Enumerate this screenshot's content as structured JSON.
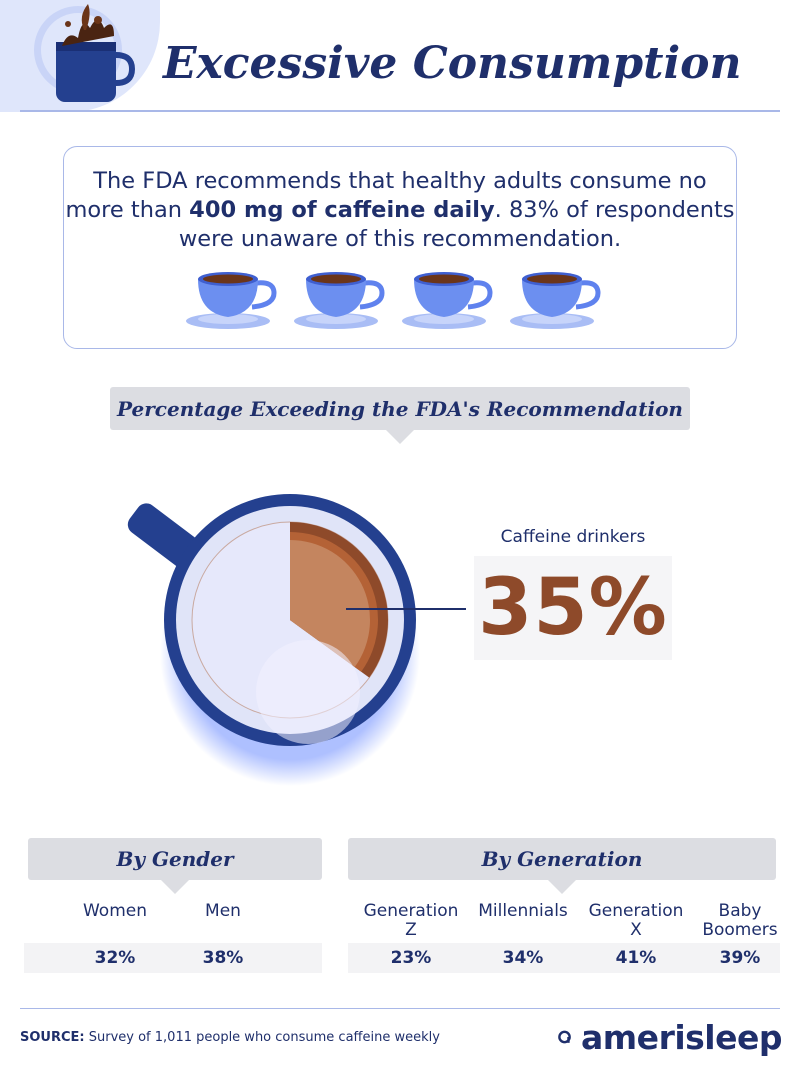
{
  "header": {
    "title": "Excessive Consumption",
    "logo_icon": "coffee-mug-splash-icon"
  },
  "info": {
    "text_before": "The FDA recommends that healthy adults consume no more than ",
    "text_bold": "400 mg of caffeine daily",
    "text_after": ". 83% of respondents were unaware of this recommendation.",
    "cups_count": 4,
    "cup_icon": "coffee-cup-icon"
  },
  "main_chart": {
    "banner": "Percentage Exceeding the FDA's Recommendation",
    "callout_label": "Caffeine drinkers",
    "callout_value": "35%"
  },
  "gender": {
    "banner": "By Gender",
    "categories": [
      "Women",
      "Men"
    ],
    "values": [
      "32%",
      "38%"
    ]
  },
  "generation": {
    "banner": "By Generation",
    "categories": [
      "Generation Z",
      "Millennials",
      "Generation X",
      "Baby Boomers"
    ],
    "values": [
      "23%",
      "34%",
      "41%",
      "39%"
    ]
  },
  "footer": {
    "source_label": "SOURCE:",
    "source_text": "Survey of 1,011 people who consume caffeine weekly",
    "brand": "amerisleep"
  },
  "colors": {
    "navy": "#1f2f6b",
    "coffee": "#8e4a2a",
    "coffee_light": "#c4855f",
    "pie_remainder": "#e6e8fb"
  },
  "chart_data": [
    {
      "type": "pie",
      "title": "Percentage Exceeding the FDA's Recommendation",
      "categories": [
        "Caffeine drinkers"
      ],
      "values": [
        35
      ]
    },
    {
      "type": "table",
      "title": "By Gender",
      "categories": [
        "Women",
        "Men"
      ],
      "values": [
        32,
        38
      ]
    },
    {
      "type": "table",
      "title": "By Generation",
      "categories": [
        "Generation Z",
        "Millennials",
        "Generation X",
        "Baby Boomers"
      ],
      "values": [
        23,
        34,
        41,
        39
      ]
    }
  ]
}
